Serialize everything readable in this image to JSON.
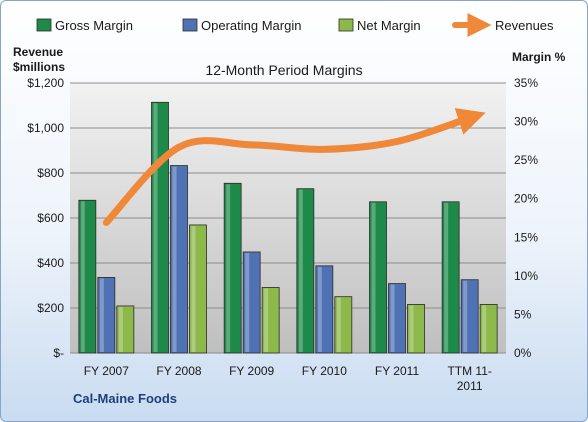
{
  "chart_data": {
    "type": "bar",
    "title": "12-Month Period Margins",
    "company": "Cal-Maine Foods",
    "left_axis": {
      "title_lines": [
        "Revenue",
        "$millions"
      ],
      "ylim": [
        0,
        1200
      ],
      "ticks": [
        0,
        200,
        400,
        600,
        800,
        1000,
        1200
      ],
      "tick_labels": [
        "$-",
        "$200",
        "$400",
        "$600",
        "$800",
        "$1,000",
        "$1,200"
      ]
    },
    "right_axis": {
      "title": "Margin %",
      "ylim": [
        0,
        35
      ],
      "ticks": [
        0,
        5,
        10,
        15,
        20,
        25,
        30,
        35
      ],
      "tick_labels": [
        "0%",
        "5%",
        "10%",
        "15%",
        "20%",
        "25%",
        "30%",
        "35%"
      ]
    },
    "categories": [
      [
        "FY 2007"
      ],
      [
        "FY 2008"
      ],
      [
        "FY 2009"
      ],
      [
        "FY 2010"
      ],
      [
        "FY 2011"
      ],
      [
        "TTM 11-",
        "2011"
      ]
    ],
    "series": [
      {
        "name": "Gross Margin",
        "axis": "right",
        "color": "#1e8a4a",
        "values": [
          19.8,
          32.5,
          22.0,
          21.3,
          19.6,
          19.6
        ]
      },
      {
        "name": "Operating Margin",
        "axis": "right",
        "color": "#4f72b5",
        "values": [
          9.8,
          24.3,
          13.1,
          11.3,
          9.0,
          9.5
        ]
      },
      {
        "name": "Net Margin",
        "axis": "right",
        "color": "#8db84a",
        "values": [
          6.1,
          16.6,
          8.5,
          7.3,
          6.3,
          6.3
        ]
      },
      {
        "name": "Revenues",
        "axis": "left",
        "type": "line",
        "color": "#f0883a",
        "values": [
          580,
          915,
          925,
          905,
          940,
          1045
        ]
      }
    ],
    "grid": true,
    "legend_position": "top"
  }
}
